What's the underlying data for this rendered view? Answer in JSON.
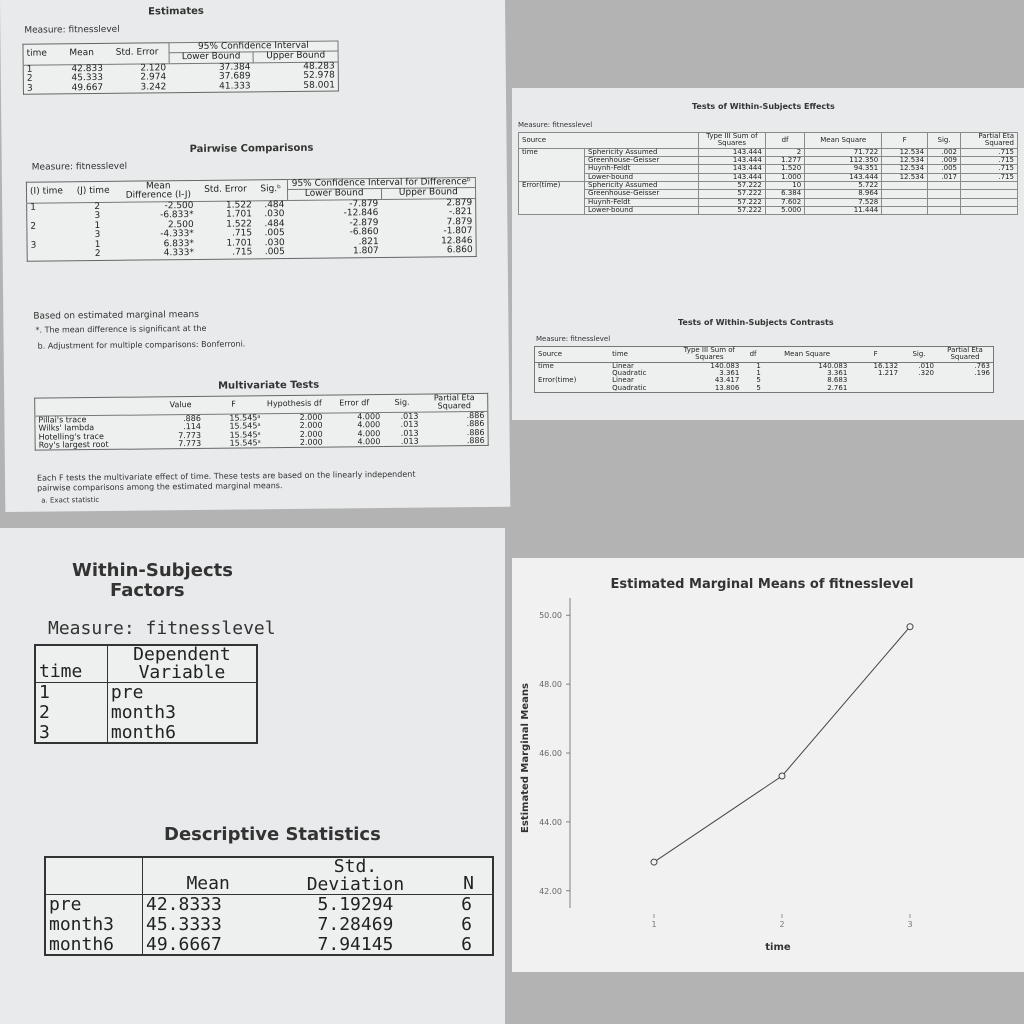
{
  "estimates": {
    "title": "Estimates",
    "measure": "Measure:  fitnesslevel",
    "headers": {
      "time": "time",
      "mean": "Mean",
      "std_error": "Std. Error",
      "ci": "95% Confidence Interval",
      "lower": "Lower Bound",
      "upper": "Upper Bound"
    },
    "rows": [
      {
        "time": "1",
        "mean": "42.833",
        "se": "2.120",
        "lower": "37.384",
        "upper": "48.283"
      },
      {
        "time": "2",
        "mean": "45.333",
        "se": "2.974",
        "lower": "37.689",
        "upper": "52.978"
      },
      {
        "time": "3",
        "mean": "49.667",
        "se": "3.242",
        "lower": "41.333",
        "upper": "58.001"
      }
    ]
  },
  "pairwise": {
    "title": "Pairwise Comparisons",
    "measure": "Measure:  fitnesslevel",
    "headers": {
      "i_time": "(I) time",
      "j_time": "(J) time",
      "mean_diff": "Mean Difference (I-J)",
      "std_error": "Std. Error",
      "sig": "Sig.ᵇ",
      "ci": "95% Confidence Interval for Differenceᵇ",
      "lower": "Lower Bound",
      "upper": "Upper Bound"
    },
    "rows": [
      {
        "i": "1",
        "j": "2",
        "md": "-2.500",
        "se": "1.522",
        "sig": ".484",
        "lower": "-7.879",
        "upper": "2.879"
      },
      {
        "i": "",
        "j": "3",
        "md": "-6.833*",
        "se": "1.701",
        "sig": ".030",
        "lower": "-12.846",
        "upper": "-.821"
      },
      {
        "i": "2",
        "j": "1",
        "md": "2.500",
        "se": "1.522",
        "sig": ".484",
        "lower": "-2.879",
        "upper": "7.879"
      },
      {
        "i": "",
        "j": "3",
        "md": "-4.333*",
        "se": ".715",
        "sig": ".005",
        "lower": "-6.860",
        "upper": "-1.807"
      },
      {
        "i": "3",
        "j": "1",
        "md": "6.833*",
        "se": "1.701",
        "sig": ".030",
        "lower": ".821",
        "upper": "12.846"
      },
      {
        "i": "",
        "j": "2",
        "md": "4.333*",
        "se": ".715",
        "sig": ".005",
        "lower": "1.807",
        "upper": "6.860"
      }
    ],
    "note1": "Based on estimated marginal means",
    "note2": "*. The mean difference is significant at the",
    "note3": "b. Adjustment for multiple comparisons: Bonferroni."
  },
  "multivariate": {
    "title": "Multivariate Tests",
    "headers": {
      "value": "Value",
      "f": "F",
      "hyp_df": "Hypothesis df",
      "err_df": "Error df",
      "sig": "Sig.",
      "eta": "Partial Eta Squared"
    },
    "rows": [
      {
        "name": "Pillai's trace",
        "value": ".886",
        "f": "15.545ᵃ",
        "hdf": "2.000",
        "edf": "4.000",
        "sig": ".013",
        "eta": ".886"
      },
      {
        "name": "Wilks' lambda",
        "value": ".114",
        "f": "15.545ᵃ",
        "hdf": "2.000",
        "edf": "4.000",
        "sig": ".013",
        "eta": ".886"
      },
      {
        "name": "Hotelling's trace",
        "value": "7.773",
        "f": "15.545ᵃ",
        "hdf": "2.000",
        "edf": "4.000",
        "sig": ".013",
        "eta": ".886"
      },
      {
        "name": "Roy's largest root",
        "value": "7.773",
        "f": "15.545ᵃ",
        "hdf": "2.000",
        "edf": "4.000",
        "sig": ".013",
        "eta": ".886"
      }
    ],
    "note1": "Each F tests the multivariate effect of time. These tests are based on the linearly independent",
    "note2": "pairwise comparisons among the estimated marginal means.",
    "note3": "a. Exact statistic"
  },
  "within_effects": {
    "title": "Tests of Within-Subjects Effects",
    "measure": "Measure:  fitnesslevel",
    "headers": {
      "source": "Source",
      "ss": "Type III Sum of Squares",
      "df": "df",
      "ms": "Mean Square",
      "f": "F",
      "sig": "Sig.",
      "eta": "Partial Eta Squared"
    },
    "groups": [
      {
        "source": "time",
        "rows": [
          {
            "method": "Sphericity Assumed",
            "ss": "143.444",
            "df": "2",
            "ms": "71.722",
            "f": "12.534",
            "sig": ".002",
            "eta": ".715"
          },
          {
            "method": "Greenhouse-Geisser",
            "ss": "143.444",
            "df": "1.277",
            "ms": "112.350",
            "f": "12.534",
            "sig": ".009",
            "eta": ".715"
          },
          {
            "method": "Huynh-Feldt",
            "ss": "143.444",
            "df": "1.520",
            "ms": "94.351",
            "f": "12.534",
            "sig": ".005",
            "eta": ".715"
          },
          {
            "method": "Lower-bound",
            "ss": "143.444",
            "df": "1.000",
            "ms": "143.444",
            "f": "12.534",
            "sig": ".017",
            "eta": ".715"
          }
        ]
      },
      {
        "source": "Error(time)",
        "rows": [
          {
            "method": "Sphericity Assumed",
            "ss": "57.222",
            "df": "10",
            "ms": "5.722",
            "f": "",
            "sig": "",
            "eta": ""
          },
          {
            "method": "Greenhouse-Geisser",
            "ss": "57.222",
            "df": "6.384",
            "ms": "8.964",
            "f": "",
            "sig": "",
            "eta": ""
          },
          {
            "method": "Huynh-Feldt",
            "ss": "57.222",
            "df": "7.602",
            "ms": "7.528",
            "f": "",
            "sig": "",
            "eta": ""
          },
          {
            "method": "Lower-bound",
            "ss": "57.222",
            "df": "5.000",
            "ms": "11.444",
            "f": "",
            "sig": "",
            "eta": ""
          }
        ]
      }
    ]
  },
  "within_contrasts": {
    "title": "Tests of Within-Subjects Contrasts",
    "measure": "Measure:  fitnesslevel",
    "headers": {
      "source": "Source",
      "time": "time",
      "ss": "Type III Sum of Squares",
      "df": "df",
      "ms": "Mean Square",
      "f": "F",
      "sig": "Sig.",
      "eta": "Partial Eta Squared"
    },
    "rows": [
      {
        "source": "time",
        "time": "Linear",
        "ss": "140.083",
        "df": "1",
        "ms": "140.083",
        "f": "16.132",
        "sig": ".010",
        "eta": ".763"
      },
      {
        "source": "",
        "time": "Quadratic",
        "ss": "3.361",
        "df": "1",
        "ms": "3.361",
        "f": "1.217",
        "sig": ".320",
        "eta": ".196"
      },
      {
        "source": "Error(time)",
        "time": "Linear",
        "ss": "43.417",
        "df": "5",
        "ms": "8.683",
        "f": "",
        "sig": "",
        "eta": ""
      },
      {
        "source": "",
        "time": "Quadratic",
        "ss": "13.806",
        "df": "5",
        "ms": "2.761",
        "f": "",
        "sig": "",
        "eta": ""
      }
    ]
  },
  "factors": {
    "title1": "Within-Subjects",
    "title2": "Factors",
    "measure": "Measure:   fitnesslevel",
    "headers": {
      "time": "time",
      "dep1": "Dependent",
      "dep2": "Variable"
    },
    "rows": [
      {
        "time": "1",
        "var": "pre"
      },
      {
        "time": "2",
        "var": "month3"
      },
      {
        "time": "3",
        "var": "month6"
      }
    ]
  },
  "descriptives": {
    "title": "Descriptive Statistics",
    "headers": {
      "mean": "Mean",
      "sd1": "Std.",
      "sd2": "Deviation",
      "n": "N"
    },
    "rows": [
      {
        "name": "pre",
        "mean": "42.8333",
        "sd": "5.19294",
        "n": "6"
      },
      {
        "name": "month3",
        "mean": "45.3333",
        "sd": "7.28469",
        "n": "6"
      },
      {
        "name": "month6",
        "mean": "49.6667",
        "sd": "7.94145",
        "n": "6"
      }
    ]
  },
  "chart_data": {
    "type": "line",
    "title": "Estimated Marginal Means of fitnesslevel",
    "xlabel": "time",
    "ylabel": "Estimated Marginal Means",
    "categories": [
      "1",
      "2",
      "3"
    ],
    "values": [
      42.833,
      45.333,
      49.667
    ],
    "ylim": [
      41.5,
      50.5
    ],
    "yticks": [
      "42.00",
      "44.00",
      "46.00",
      "48.00",
      "50.00"
    ],
    "ytick_values": [
      42,
      44,
      46,
      48,
      50
    ],
    "grid": false
  }
}
